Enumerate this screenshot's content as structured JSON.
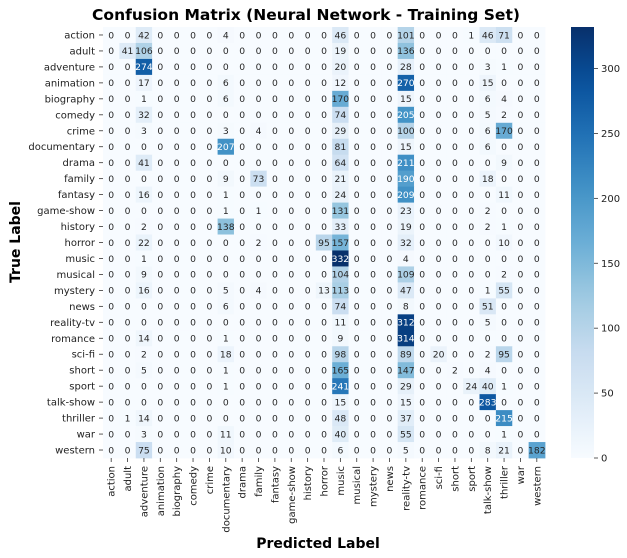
{
  "chart_data": {
    "type": "heatmap",
    "title": "Confusion Matrix (Neural Network - Training Set)",
    "xlabel": "Predicted Label",
    "ylabel": "True Label",
    "labels": [
      "action",
      "adult",
      "adventure",
      "animation",
      "biography",
      "comedy",
      "crime",
      "documentary",
      "drama",
      "family",
      "fantasy",
      "game-show",
      "history",
      "horror",
      "music",
      "musical",
      "mystery",
      "news",
      "reality-tv",
      "romance",
      "sci-fi",
      "short",
      "sport",
      "talk-show",
      "thriller",
      "war",
      "western"
    ],
    "matrix": [
      [
        0,
        0,
        42,
        0,
        0,
        0,
        0,
        4,
        0,
        0,
        0,
        0,
        0,
        0,
        46,
        0,
        0,
        0,
        101,
        0,
        0,
        0,
        1,
        46,
        71,
        0,
        0
      ],
      [
        0,
        41,
        106,
        0,
        0,
        0,
        0,
        0,
        0,
        0,
        0,
        0,
        0,
        0,
        19,
        0,
        0,
        0,
        136,
        0,
        0,
        0,
        0,
        0,
        0,
        0,
        0
      ],
      [
        0,
        0,
        274,
        0,
        0,
        0,
        0,
        0,
        0,
        0,
        0,
        0,
        0,
        0,
        20,
        0,
        0,
        0,
        28,
        0,
        0,
        0,
        0,
        3,
        1,
        0,
        0
      ],
      [
        0,
        0,
        17,
        0,
        0,
        0,
        0,
        6,
        0,
        0,
        0,
        0,
        0,
        0,
        12,
        0,
        0,
        0,
        270,
        0,
        0,
        0,
        0,
        15,
        0,
        0,
        0
      ],
      [
        0,
        0,
        1,
        0,
        0,
        0,
        0,
        6,
        0,
        0,
        0,
        0,
        0,
        0,
        170,
        0,
        0,
        0,
        15,
        0,
        0,
        0,
        0,
        6,
        4,
        0,
        0
      ],
      [
        0,
        0,
        32,
        0,
        0,
        0,
        0,
        0,
        0,
        0,
        0,
        0,
        0,
        0,
        74,
        0,
        0,
        0,
        205,
        0,
        0,
        0,
        0,
        5,
        2,
        0,
        0
      ],
      [
        0,
        0,
        3,
        0,
        0,
        0,
        0,
        3,
        0,
        4,
        0,
        0,
        0,
        0,
        29,
        0,
        0,
        0,
        100,
        0,
        0,
        0,
        0,
        6,
        170,
        0,
        0
      ],
      [
        0,
        0,
        0,
        0,
        0,
        0,
        0,
        207,
        0,
        0,
        0,
        0,
        0,
        0,
        81,
        0,
        0,
        0,
        15,
        0,
        0,
        0,
        0,
        6,
        0,
        0,
        0
      ],
      [
        0,
        0,
        41,
        0,
        0,
        0,
        0,
        0,
        0,
        0,
        0,
        0,
        0,
        0,
        64,
        0,
        0,
        0,
        211,
        0,
        0,
        0,
        0,
        0,
        9,
        0,
        0
      ],
      [
        0,
        0,
        0,
        0,
        0,
        0,
        0,
        9,
        0,
        73,
        0,
        0,
        0,
        0,
        21,
        0,
        0,
        0,
        190,
        0,
        0,
        0,
        0,
        18,
        0,
        0,
        0
      ],
      [
        0,
        0,
        16,
        0,
        0,
        0,
        0,
        1,
        0,
        0,
        0,
        0,
        0,
        0,
        24,
        0,
        0,
        0,
        209,
        0,
        0,
        0,
        0,
        0,
        11,
        0,
        0
      ],
      [
        0,
        0,
        0,
        0,
        0,
        0,
        0,
        1,
        0,
        1,
        0,
        0,
        0,
        0,
        131,
        0,
        0,
        0,
        23,
        0,
        0,
        0,
        0,
        2,
        0,
        0,
        0
      ],
      [
        0,
        0,
        2,
        0,
        0,
        0,
        0,
        138,
        0,
        0,
        0,
        0,
        0,
        0,
        33,
        0,
        0,
        0,
        19,
        0,
        0,
        0,
        0,
        2,
        1,
        0,
        0
      ],
      [
        0,
        0,
        22,
        0,
        0,
        0,
        0,
        0,
        0,
        2,
        0,
        0,
        0,
        95,
        157,
        0,
        0,
        0,
        32,
        0,
        0,
        0,
        0,
        0,
        10,
        0,
        0
      ],
      [
        0,
        0,
        1,
        0,
        0,
        0,
        0,
        0,
        0,
        0,
        0,
        0,
        0,
        0,
        332,
        0,
        0,
        0,
        4,
        0,
        0,
        0,
        0,
        0,
        0,
        0,
        0
      ],
      [
        0,
        0,
        9,
        0,
        0,
        0,
        0,
        0,
        0,
        0,
        0,
        0,
        0,
        0,
        104,
        0,
        0,
        0,
        109,
        0,
        0,
        0,
        0,
        0,
        2,
        0,
        0
      ],
      [
        0,
        0,
        16,
        0,
        0,
        0,
        0,
        5,
        0,
        4,
        0,
        0,
        0,
        13,
        113,
        0,
        0,
        0,
        47,
        0,
        0,
        0,
        0,
        1,
        55,
        0,
        0
      ],
      [
        0,
        0,
        0,
        0,
        0,
        0,
        0,
        6,
        0,
        0,
        0,
        0,
        0,
        0,
        74,
        0,
        0,
        0,
        8,
        0,
        0,
        0,
        0,
        51,
        0,
        0,
        0
      ],
      [
        0,
        0,
        0,
        0,
        0,
        0,
        0,
        0,
        0,
        0,
        0,
        0,
        0,
        0,
        11,
        0,
        0,
        0,
        312,
        0,
        0,
        0,
        0,
        5,
        0,
        0,
        0
      ],
      [
        0,
        0,
        14,
        0,
        0,
        0,
        0,
        1,
        0,
        0,
        0,
        0,
        0,
        0,
        9,
        0,
        0,
        0,
        314,
        0,
        0,
        0,
        0,
        0,
        0,
        0,
        0
      ],
      [
        0,
        0,
        2,
        0,
        0,
        0,
        0,
        18,
        0,
        0,
        0,
        0,
        0,
        0,
        98,
        0,
        0,
        0,
        89,
        0,
        20,
        0,
        0,
        2,
        95,
        0,
        0
      ],
      [
        0,
        0,
        5,
        0,
        0,
        0,
        0,
        1,
        0,
        0,
        0,
        0,
        0,
        0,
        165,
        0,
        0,
        0,
        147,
        0,
        0,
        2,
        0,
        4,
        0,
        0,
        0
      ],
      [
        0,
        0,
        0,
        0,
        0,
        0,
        0,
        1,
        0,
        0,
        0,
        0,
        0,
        0,
        241,
        0,
        0,
        0,
        29,
        0,
        0,
        0,
        24,
        40,
        1,
        0,
        0
      ],
      [
        0,
        0,
        0,
        0,
        0,
        0,
        0,
        0,
        0,
        0,
        0,
        0,
        0,
        0,
        15,
        0,
        0,
        0,
        15,
        0,
        0,
        0,
        0,
        283,
        0,
        0,
        0
      ],
      [
        0,
        1,
        14,
        0,
        0,
        0,
        0,
        0,
        0,
        0,
        0,
        0,
        0,
        0,
        48,
        0,
        0,
        0,
        37,
        0,
        0,
        0,
        0,
        0,
        215,
        0,
        0
      ],
      [
        0,
        0,
        3,
        0,
        0,
        0,
        0,
        11,
        0,
        0,
        0,
        0,
        0,
        0,
        40,
        0,
        0,
        0,
        55,
        0,
        0,
        0,
        0,
        0,
        1,
        0,
        0
      ],
      [
        0,
        0,
        75,
        0,
        0,
        0,
        0,
        10,
        0,
        0,
        0,
        0,
        0,
        0,
        6,
        0,
        0,
        0,
        5,
        0,
        0,
        0,
        0,
        8,
        21,
        0,
        182
      ]
    ],
    "colormap": "Blues",
    "vmin": 0,
    "vmax": 332,
    "colorbar_ticks": [
      0,
      50,
      100,
      150,
      200,
      250,
      300
    ],
    "annotated": true,
    "grid": false
  }
}
